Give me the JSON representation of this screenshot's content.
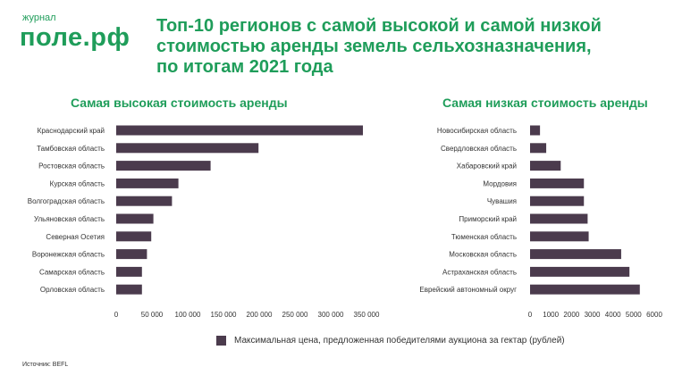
{
  "logo": {
    "small": "журнал",
    "big": "поле.рф"
  },
  "title_lines": [
    "Топ-10 регионов с самой высокой и самой низкой",
    "стоимостью аренды земель сельхозназначения,",
    "по итогам 2021 года"
  ],
  "legend": "Максимальная цена, предложенная победителями аукциона за гектар (рублей)",
  "source": "Источник: BEFL",
  "colors": {
    "accent": "#1f9d5a",
    "bar": "#4b3b4d"
  },
  "chart_data": [
    {
      "type": "bar",
      "orientation": "horizontal",
      "title": "Самая высокая стоимость аренды",
      "categories": [
        "Краснодарский край",
        "Тамбовская область",
        "Ростовская область",
        "Курская область",
        "Волгоградская область",
        "Ульяновская область",
        "Северная Осетия",
        "Воронежская область",
        "Самарская область",
        "Орловская область"
      ],
      "values": [
        345000,
        199000,
        132000,
        87000,
        78000,
        52000,
        49000,
        43000,
        36000,
        36000
      ],
      "xlim": [
        0,
        350000
      ],
      "ticks": [
        0,
        50000,
        100000,
        150000,
        200000,
        250000,
        300000,
        350000
      ],
      "tick_labels": [
        "0",
        "50 000",
        "100 000",
        "150 000",
        "200 000",
        "250 000",
        "300 000",
        "350 000"
      ],
      "grid": false
    },
    {
      "type": "bar",
      "orientation": "horizontal",
      "title": "Самая низкая стоимость аренды",
      "categories": [
        "Новосибирская область",
        "Свердловская область",
        "Хабаровский край",
        "Мордовия",
        "Чувашия",
        "Приморский край",
        "Тюменская область",
        "Московская область",
        "Астраханская область",
        "Еврейский автономный округ"
      ],
      "values": [
        480,
        780,
        1480,
        2600,
        2600,
        2780,
        2830,
        4400,
        4800,
        5300
      ],
      "xlim": [
        0,
        6000
      ],
      "ticks": [
        0,
        1000,
        2000,
        3000,
        4000,
        5000,
        6000
      ],
      "tick_labels": [
        "0",
        "1000",
        "2000",
        "3000",
        "4000",
        "5000",
        "6000"
      ],
      "grid": false
    }
  ]
}
